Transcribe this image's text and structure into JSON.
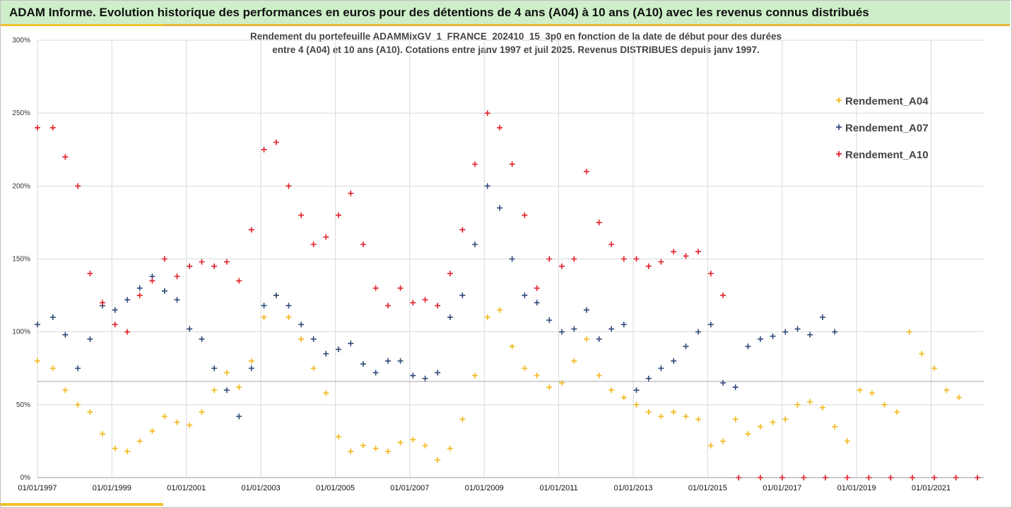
{
  "header": {
    "title": "ADAM Informe. Evolution historique des performances en euros pour des détentions de 4 ans (A04) à 10 ans (A10) avec les revenus connus distribués"
  },
  "colors": {
    "header_bg": "#cdeec8",
    "accent": "#f2c12e",
    "A04": "#f2b81a",
    "A07": "#2e4a7a",
    "A10": "#e21f26"
  },
  "chart_data": {
    "type": "scatter",
    "title_lines": [
      "Rendement du portefeuille ADAMMixGV_1_FRANCE_202410_15_3p0 en fonction de la date de début pour des durées",
      "entre 4 (A04) et 10 ans (A10). Cotations entre janv 1997 et juil 2025. Revenus DISTRIBUES depuis janv 1997."
    ],
    "xlabel": "",
    "ylabel": "",
    "y_ticks": [
      "0%",
      "50%",
      "100%",
      "150%",
      "200%",
      "250%",
      "300%"
    ],
    "x_ticks": [
      "01/01/1997",
      "01/01/1999",
      "01/01/2001",
      "01/01/2003",
      "01/01/2005",
      "01/01/2007",
      "01/01/2009",
      "01/01/2011",
      "01/01/2013",
      "01/01/2015",
      "01/01/2017",
      "01/01/2019",
      "01/01/2021"
    ],
    "xlim": [
      "1997-01-01",
      "2022-06-01"
    ],
    "ylim": [
      0,
      300
    ],
    "reference_line": 66,
    "grid": "horizontal",
    "legend_position": "right",
    "marker": "+",
    "series": [
      {
        "name": "Rendement_A04",
        "points": [
          [
            "1997-01-01",
            80
          ],
          [
            "1997-06-01",
            75
          ],
          [
            "1997-10-01",
            60
          ],
          [
            "1998-02-01",
            50
          ],
          [
            "1998-06-01",
            45
          ],
          [
            "1998-10-01",
            30
          ],
          [
            "1999-02-01",
            20
          ],
          [
            "1999-06-01",
            18
          ],
          [
            "1999-10-01",
            25
          ],
          [
            "2000-02-01",
            32
          ],
          [
            "2000-06-01",
            42
          ],
          [
            "2000-10-01",
            38
          ],
          [
            "2001-02-01",
            36
          ],
          [
            "2001-06-01",
            45
          ],
          [
            "2001-10-01",
            60
          ],
          [
            "2002-02-01",
            72
          ],
          [
            "2002-06-01",
            62
          ],
          [
            "2002-10-01",
            80
          ],
          [
            "2003-02-01",
            110
          ],
          [
            "2003-06-01",
            125
          ],
          [
            "2003-10-01",
            110
          ],
          [
            "2004-02-01",
            95
          ],
          [
            "2004-06-01",
            75
          ],
          [
            "2004-10-01",
            58
          ],
          [
            "2005-02-01",
            28
          ],
          [
            "2005-06-01",
            18
          ],
          [
            "2005-10-01",
            22
          ],
          [
            "2006-02-01",
            20
          ],
          [
            "2006-06-01",
            18
          ],
          [
            "2006-10-01",
            24
          ],
          [
            "2007-02-01",
            26
          ],
          [
            "2007-06-01",
            22
          ],
          [
            "2007-10-01",
            12
          ],
          [
            "2008-02-01",
            20
          ],
          [
            "2008-06-01",
            40
          ],
          [
            "2008-10-01",
            70
          ],
          [
            "2009-02-01",
            110
          ],
          [
            "2009-06-01",
            115
          ],
          [
            "2009-10-01",
            90
          ],
          [
            "2010-02-01",
            75
          ],
          [
            "2010-06-01",
            70
          ],
          [
            "2010-10-01",
            62
          ],
          [
            "2011-02-01",
            65
          ],
          [
            "2011-06-01",
            80
          ],
          [
            "2011-10-01",
            95
          ],
          [
            "2012-02-01",
            70
          ],
          [
            "2012-06-01",
            60
          ],
          [
            "2012-10-01",
            55
          ],
          [
            "2013-02-01",
            50
          ],
          [
            "2013-06-01",
            45
          ],
          [
            "2013-10-01",
            42
          ],
          [
            "2014-02-01",
            45
          ],
          [
            "2014-06-01",
            42
          ],
          [
            "2014-10-01",
            40
          ],
          [
            "2015-02-01",
            22
          ],
          [
            "2015-06-01",
            25
          ],
          [
            "2015-10-01",
            40
          ],
          [
            "2016-02-01",
            30
          ],
          [
            "2016-06-01",
            35
          ],
          [
            "2016-10-01",
            38
          ],
          [
            "2017-02-01",
            40
          ],
          [
            "2017-06-01",
            50
          ],
          [
            "2017-10-01",
            52
          ],
          [
            "2018-02-01",
            48
          ],
          [
            "2018-06-01",
            35
          ],
          [
            "2018-10-01",
            25
          ],
          [
            "2019-02-01",
            60
          ],
          [
            "2019-06-01",
            58
          ],
          [
            "2019-10-01",
            50
          ],
          [
            "2020-02-01",
            45
          ],
          [
            "2020-06-01",
            100
          ],
          [
            "2020-10-01",
            85
          ],
          [
            "2021-02-01",
            75
          ],
          [
            "2021-06-01",
            60
          ],
          [
            "2021-10-01",
            55
          ]
        ]
      },
      {
        "name": "Rendement_A07",
        "points": [
          [
            "1997-01-01",
            105
          ],
          [
            "1997-06-01",
            110
          ],
          [
            "1997-10-01",
            98
          ],
          [
            "1998-02-01",
            75
          ],
          [
            "1998-06-01",
            95
          ],
          [
            "1998-10-01",
            118
          ],
          [
            "1999-02-01",
            115
          ],
          [
            "1999-06-01",
            122
          ],
          [
            "1999-10-01",
            130
          ],
          [
            "2000-02-01",
            138
          ],
          [
            "2000-06-01",
            128
          ],
          [
            "2000-10-01",
            122
          ],
          [
            "2001-02-01",
            102
          ],
          [
            "2001-06-01",
            95
          ],
          [
            "2001-10-01",
            75
          ],
          [
            "2002-02-01",
            60
          ],
          [
            "2002-06-01",
            42
          ],
          [
            "2002-10-01",
            75
          ],
          [
            "2003-02-01",
            118
          ],
          [
            "2003-06-01",
            125
          ],
          [
            "2003-10-01",
            118
          ],
          [
            "2004-02-01",
            105
          ],
          [
            "2004-06-01",
            95
          ],
          [
            "2004-10-01",
            85
          ],
          [
            "2005-02-01",
            88
          ],
          [
            "2005-06-01",
            92
          ],
          [
            "2005-10-01",
            78
          ],
          [
            "2006-02-01",
            72
          ],
          [
            "2006-06-01",
            80
          ],
          [
            "2006-10-01",
            80
          ],
          [
            "2007-02-01",
            70
          ],
          [
            "2007-06-01",
            68
          ],
          [
            "2007-10-01",
            72
          ],
          [
            "2008-02-01",
            110
          ],
          [
            "2008-06-01",
            125
          ],
          [
            "2008-10-01",
            160
          ],
          [
            "2009-02-01",
            200
          ],
          [
            "2009-06-01",
            185
          ],
          [
            "2009-10-01",
            150
          ],
          [
            "2010-02-01",
            125
          ],
          [
            "2010-06-01",
            120
          ],
          [
            "2010-10-01",
            108
          ],
          [
            "2011-02-01",
            100
          ],
          [
            "2011-06-01",
            102
          ],
          [
            "2011-10-01",
            115
          ],
          [
            "2012-02-01",
            95
          ],
          [
            "2012-06-01",
            102
          ],
          [
            "2012-10-01",
            105
          ],
          [
            "2013-02-01",
            60
          ],
          [
            "2013-06-01",
            68
          ],
          [
            "2013-10-01",
            75
          ],
          [
            "2014-02-01",
            80
          ],
          [
            "2014-06-01",
            90
          ],
          [
            "2014-10-01",
            100
          ],
          [
            "2015-02-01",
            105
          ],
          [
            "2015-06-01",
            65
          ],
          [
            "2015-10-01",
            62
          ],
          [
            "2016-02-01",
            90
          ],
          [
            "2016-06-01",
            95
          ],
          [
            "2016-10-01",
            97
          ],
          [
            "2017-02-01",
            100
          ],
          [
            "2017-06-01",
            102
          ],
          [
            "2017-10-01",
            98
          ],
          [
            "2018-02-01",
            110
          ],
          [
            "2018-06-01",
            100
          ]
        ]
      },
      {
        "name": "Rendement_A10",
        "points": [
          [
            "1997-01-01",
            240
          ],
          [
            "1997-06-01",
            240
          ],
          [
            "1997-10-01",
            220
          ],
          [
            "1998-02-01",
            200
          ],
          [
            "1998-06-01",
            140
          ],
          [
            "1998-10-01",
            120
          ],
          [
            "1999-02-01",
            105
          ],
          [
            "1999-06-01",
            100
          ],
          [
            "1999-10-01",
            125
          ],
          [
            "2000-02-01",
            135
          ],
          [
            "2000-06-01",
            150
          ],
          [
            "2000-10-01",
            138
          ],
          [
            "2001-02-01",
            145
          ],
          [
            "2001-06-01",
            148
          ],
          [
            "2001-10-01",
            145
          ],
          [
            "2002-02-01",
            148
          ],
          [
            "2002-06-01",
            135
          ],
          [
            "2002-10-01",
            170
          ],
          [
            "2003-02-01",
            225
          ],
          [
            "2003-06-01",
            230
          ],
          [
            "2003-10-01",
            200
          ],
          [
            "2004-02-01",
            180
          ],
          [
            "2004-06-01",
            160
          ],
          [
            "2004-10-01",
            165
          ],
          [
            "2005-02-01",
            180
          ],
          [
            "2005-06-01",
            195
          ],
          [
            "2005-10-01",
            160
          ],
          [
            "2006-02-01",
            130
          ],
          [
            "2006-06-01",
            118
          ],
          [
            "2006-10-01",
            130
          ],
          [
            "2007-02-01",
            120
          ],
          [
            "2007-06-01",
            122
          ],
          [
            "2007-10-01",
            118
          ],
          [
            "2008-02-01",
            140
          ],
          [
            "2008-06-01",
            170
          ],
          [
            "2008-10-01",
            215
          ],
          [
            "2009-02-01",
            250
          ],
          [
            "2009-06-01",
            240
          ],
          [
            "2009-10-01",
            215
          ],
          [
            "2010-02-01",
            180
          ],
          [
            "2010-06-01",
            130
          ],
          [
            "2010-10-01",
            150
          ],
          [
            "2011-02-01",
            145
          ],
          [
            "2011-06-01",
            150
          ],
          [
            "2011-10-01",
            210
          ],
          [
            "2012-02-01",
            175
          ],
          [
            "2012-06-01",
            160
          ],
          [
            "2012-10-01",
            150
          ],
          [
            "2013-02-01",
            150
          ],
          [
            "2013-06-01",
            145
          ],
          [
            "2013-10-01",
            148
          ],
          [
            "2014-02-01",
            155
          ],
          [
            "2014-06-01",
            152
          ],
          [
            "2014-10-01",
            155
          ],
          [
            "2015-02-01",
            140
          ],
          [
            "2015-06-01",
            125
          ],
          [
            "2015-11-01",
            0
          ],
          [
            "2016-06-01",
            0
          ],
          [
            "2017-01-01",
            0
          ],
          [
            "2017-08-01",
            0
          ],
          [
            "2018-03-01",
            0
          ],
          [
            "2018-10-01",
            0
          ],
          [
            "2019-05-01",
            0
          ],
          [
            "2019-12-01",
            0
          ],
          [
            "2020-07-01",
            0
          ],
          [
            "2021-02-01",
            0
          ],
          [
            "2021-09-01",
            0
          ],
          [
            "2022-04-01",
            0
          ]
        ]
      }
    ]
  }
}
